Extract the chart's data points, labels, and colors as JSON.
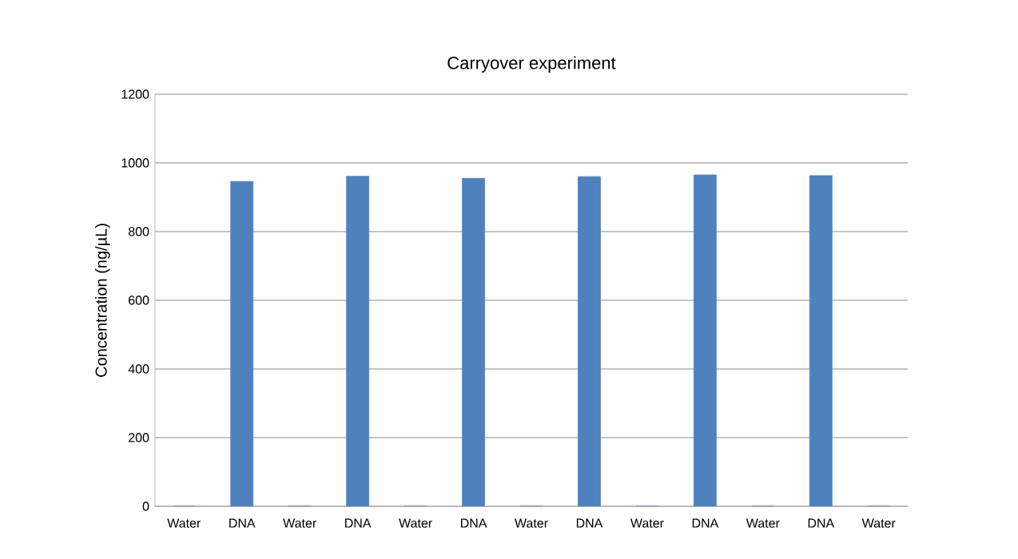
{
  "chart_data": {
    "type": "bar",
    "title": "Carryover experiment",
    "ylabel": "Concentration (ng/µL)",
    "categories": [
      "Water",
      "DNA",
      "Water",
      "DNA",
      "Water",
      "DNA",
      "Water",
      "DNA",
      "Water",
      "DNA",
      "Water",
      "DNA",
      "Water"
    ],
    "values": [
      0,
      946,
      0,
      961,
      0,
      955,
      0,
      960,
      0,
      965,
      0,
      963,
      0
    ],
    "color": "#4f81bd",
    "ylim": [
      0,
      1200
    ],
    "yticks": [
      0,
      200,
      400,
      600,
      800,
      1000,
      1200
    ],
    "grid": "y"
  }
}
